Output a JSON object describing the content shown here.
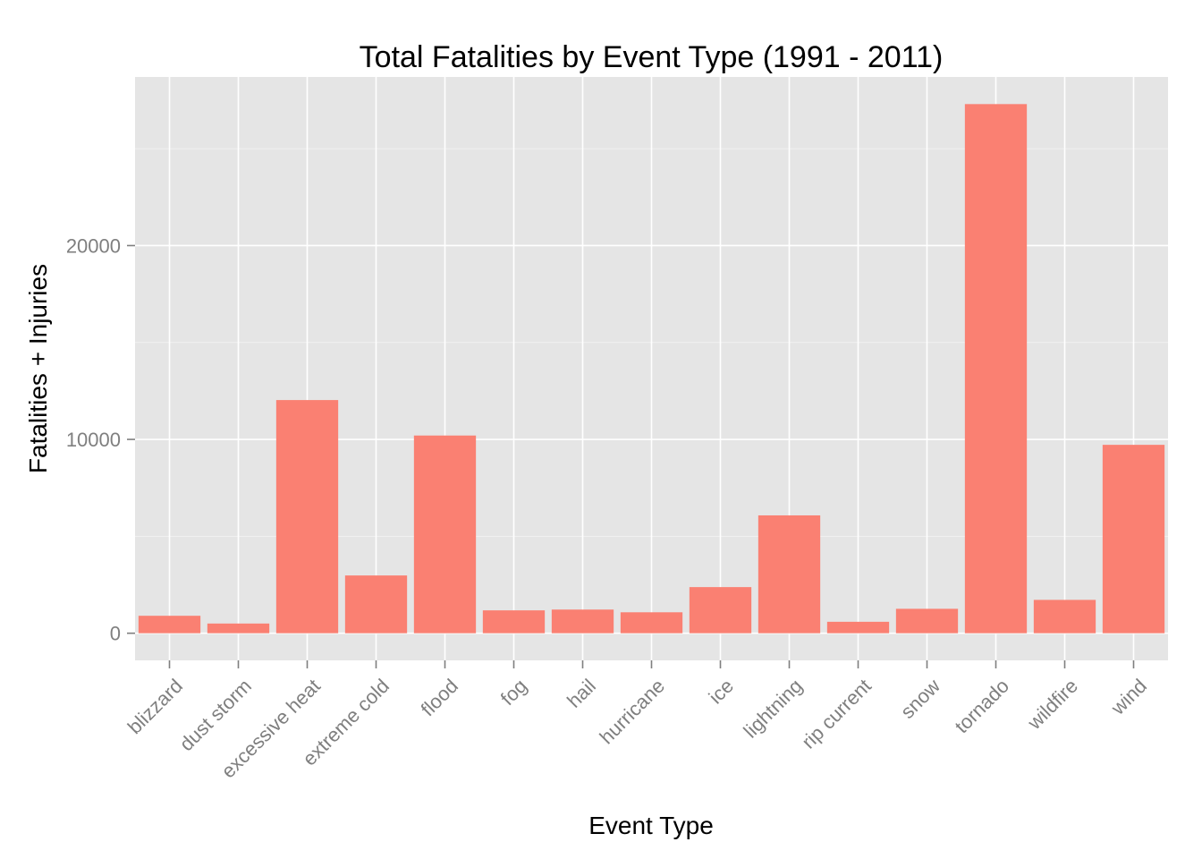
{
  "chart_data": {
    "type": "bar",
    "title": "Total Fatalities by Event Type (1991 - 2011)",
    "xlabel": "Event Type",
    "ylabel": "Fatalities + Injuries",
    "categories": [
      "blizzard",
      "dust storm",
      "excessive heat",
      "extreme cold",
      "flood",
      "fog",
      "hail",
      "hurricane",
      "ice",
      "lightning",
      "rip current",
      "snow",
      "tornado",
      "wildfire",
      "wind"
    ],
    "values": [
      900,
      500,
      12030,
      2980,
      10200,
      1180,
      1220,
      1080,
      2380,
      6080,
      590,
      1260,
      27300,
      1720,
      9720
    ],
    "yticks": [
      0,
      10000,
      20000
    ],
    "ylim": [
      -1400,
      28700
    ],
    "grid": true,
    "legend": "none",
    "colors": {
      "bar": "#fa8072",
      "panel": "#e5e5e5"
    }
  }
}
